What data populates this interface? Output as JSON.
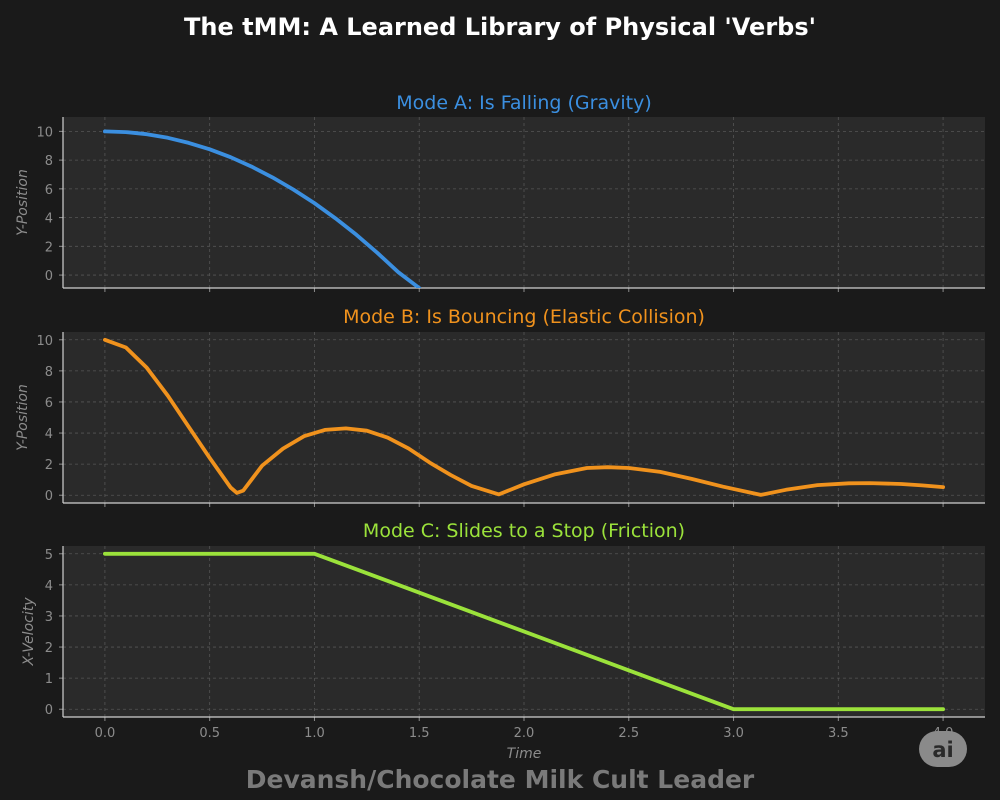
{
  "figure": {
    "title": "The tMM: A Learned Library of Physical 'Verbs'",
    "footer": "Devansh/Chocolate Milk Cult Leader",
    "logo_text": "ai"
  },
  "chart_data": [
    {
      "type": "line",
      "title": "Mode A: Is Falling (Gravity)",
      "title_color": "#3b8fe0",
      "ylabel": "Y-Position",
      "xlabel": "",
      "xlim": [
        -0.2,
        4.2
      ],
      "ylim": [
        -0.9,
        11.0
      ],
      "yticks": [
        "0",
        "2",
        "4",
        "6",
        "8",
        "10"
      ],
      "xticks": [],
      "grid": true,
      "series": [
        {
          "color": "#3b8fe0",
          "x": [
            0.0,
            0.1,
            0.2,
            0.3,
            0.4,
            0.5,
            0.6,
            0.7,
            0.8,
            0.9,
            1.0,
            1.1,
            1.2,
            1.3,
            1.4,
            1.5
          ],
          "y": [
            10.0,
            9.95,
            9.8,
            9.55,
            9.2,
            8.75,
            8.2,
            7.55,
            6.8,
            5.95,
            5.0,
            3.95,
            2.8,
            1.55,
            0.2,
            -0.9
          ]
        }
      ]
    },
    {
      "type": "line",
      "title": "Mode B: Is Bouncing (Elastic Collision)",
      "title_color": "#f0921d",
      "ylabel": "Y-Position",
      "xlabel": "",
      "xlim": [
        -0.2,
        4.2
      ],
      "ylim": [
        -0.5,
        10.5
      ],
      "yticks": [
        "0",
        "2",
        "4",
        "6",
        "8",
        "10"
      ],
      "xticks": [],
      "grid": true,
      "series": [
        {
          "color": "#f0921d",
          "x": [
            0.0,
            0.1,
            0.2,
            0.3,
            0.4,
            0.5,
            0.6,
            0.63,
            0.66,
            0.75,
            0.85,
            0.95,
            1.05,
            1.15,
            1.25,
            1.35,
            1.45,
            1.55,
            1.65,
            1.75,
            1.88,
            2.0,
            2.15,
            2.3,
            2.4,
            2.5,
            2.65,
            2.8,
            2.95,
            3.13,
            3.25,
            3.4,
            3.55,
            3.65,
            3.8,
            3.9,
            4.0
          ],
          "y": [
            10.0,
            9.5,
            8.2,
            6.4,
            4.4,
            2.4,
            0.5,
            0.15,
            0.3,
            1.9,
            3.0,
            3.8,
            4.2,
            4.3,
            4.15,
            3.7,
            3.0,
            2.1,
            1.3,
            0.6,
            0.05,
            0.7,
            1.35,
            1.75,
            1.8,
            1.75,
            1.5,
            1.05,
            0.55,
            0.02,
            0.35,
            0.65,
            0.77,
            0.78,
            0.72,
            0.63,
            0.52
          ]
        }
      ]
    },
    {
      "type": "line",
      "title": "Mode C: Slides to a Stop (Friction)",
      "title_color": "#9be23b",
      "ylabel": "X-Velocity",
      "xlabel": "Time",
      "xlim": [
        -0.2,
        4.2
      ],
      "ylim": [
        -0.25,
        5.25
      ],
      "yticks": [
        "0",
        "1",
        "2",
        "3",
        "4",
        "5"
      ],
      "xticks": [
        "0.0",
        "0.5",
        "1.0",
        "1.5",
        "2.0",
        "2.5",
        "3.0",
        "3.5",
        "4.0"
      ],
      "grid": true,
      "series": [
        {
          "color": "#9be23b",
          "x": [
            0.0,
            1.0,
            3.0,
            4.0
          ],
          "y": [
            5.0,
            5.0,
            0.0,
            0.0
          ]
        }
      ]
    }
  ]
}
